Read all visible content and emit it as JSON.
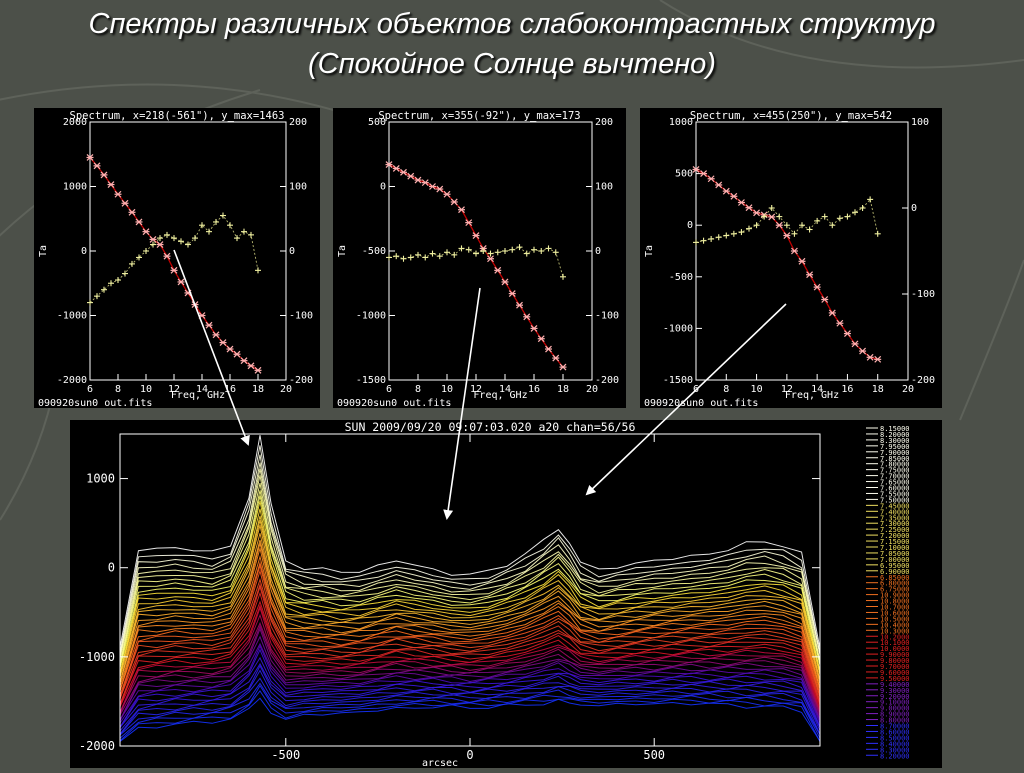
{
  "slide": {
    "title_line1": "Спектры различных объектов слабоконтрастных структур",
    "title_line2": "(Спокойное Солнце вычтено)"
  },
  "colors": {
    "background": "#4c5049",
    "panel": "#000000",
    "spectrum_marker": "#ffb0b0",
    "spectrum_fit": "#c00000",
    "secondary_marker": "#f0f0a0",
    "axis": "#ffffff",
    "arrow": "#ffffff"
  },
  "chart_data": [
    {
      "type": "scatter",
      "id": "spectrum-1",
      "title": "Spectrum, x=218(-561\"), y_max=1463",
      "xlabel": "Freq, GHz",
      "ylabel": "Ta",
      "footer": "090920sun0_out.fits",
      "xlim": [
        6,
        20
      ],
      "ylim": [
        -2000,
        2000
      ],
      "y2lim": [
        -200,
        200
      ],
      "xticks": [
        6,
        8,
        10,
        12,
        14,
        16,
        18,
        20
      ],
      "yticks": [
        -2000,
        -1000,
        0,
        1000,
        2000
      ],
      "y2ticks": [
        -200,
        -100,
        0,
        100,
        200
      ],
      "series": [
        {
          "axis": "left",
          "x": [
            6,
            6.5,
            7,
            7.5,
            8,
            8.5,
            9,
            9.5,
            10,
            10.5,
            11,
            11.5,
            12,
            12.5,
            13,
            13.5,
            14,
            14.5,
            15,
            15.5,
            16,
            16.5,
            17,
            17.5,
            18
          ],
          "y": [
            1450,
            1320,
            1180,
            1030,
            880,
            740,
            600,
            450,
            300,
            180,
            100,
            -80,
            -300,
            -480,
            -650,
            -830,
            -1000,
            -1150,
            -1300,
            -1420,
            -1520,
            -1600,
            -1700,
            -1780,
            -1850
          ]
        },
        {
          "axis": "right",
          "x": [
            6,
            6.5,
            7,
            7.5,
            8,
            8.5,
            9,
            9.5,
            10,
            10.5,
            11,
            11.5,
            12,
            12.5,
            13,
            13.5,
            14,
            14.5,
            15,
            15.5,
            16,
            16.5,
            17,
            17.5,
            18
          ],
          "y": [
            -80,
            -70,
            -60,
            -50,
            -45,
            -35,
            -20,
            -10,
            0,
            10,
            20,
            25,
            20,
            15,
            10,
            20,
            40,
            30,
            45,
            55,
            40,
            20,
            30,
            25,
            -30
          ]
        }
      ]
    },
    {
      "type": "scatter",
      "id": "spectrum-2",
      "title": "Spectrum, x=355(-92\"), y_max=173",
      "xlabel": "Freq, GHz",
      "ylabel": "Ta",
      "footer": "090920sun0_out.fits",
      "xlim": [
        6,
        20
      ],
      "ylim": [
        -1500,
        500
      ],
      "y2lim": [
        -200,
        200
      ],
      "xticks": [
        6,
        8,
        10,
        12,
        14,
        16,
        18,
        20
      ],
      "yticks": [
        -1500,
        -1000,
        -500,
        0,
        500
      ],
      "y2ticks": [
        -200,
        -100,
        0,
        100,
        200
      ],
      "series": [
        {
          "axis": "left",
          "x": [
            6,
            6.5,
            7,
            7.5,
            8,
            8.5,
            9,
            9.5,
            10,
            10.5,
            11,
            11.5,
            12,
            12.5,
            13,
            13.5,
            14,
            14.5,
            15,
            15.5,
            16,
            16.5,
            17,
            17.5,
            18
          ],
          "y": [
            170,
            140,
            110,
            80,
            50,
            30,
            0,
            -20,
            -60,
            -120,
            -180,
            -280,
            -380,
            -480,
            -560,
            -650,
            -740,
            -830,
            -920,
            -1010,
            -1100,
            -1180,
            -1260,
            -1330,
            -1400
          ]
        },
        {
          "axis": "right",
          "x": [
            6,
            6.5,
            7,
            7.5,
            8,
            8.5,
            9,
            9.5,
            10,
            10.5,
            11,
            11.5,
            12,
            12.5,
            13,
            13.5,
            14,
            14.5,
            15,
            15.5,
            16,
            16.5,
            17,
            17.5,
            18
          ],
          "y": [
            -10,
            -8,
            -12,
            -10,
            -6,
            -10,
            -4,
            -8,
            -2,
            -6,
            4,
            2,
            -4,
            0,
            -4,
            -2,
            0,
            2,
            6,
            -4,
            2,
            0,
            4,
            -2,
            -40
          ]
        }
      ]
    },
    {
      "type": "scatter",
      "id": "spectrum-3",
      "title": "Spectrum, x=455(250\"), y_max=542",
      "xlabel": "Freq, GHz",
      "ylabel": "Ta",
      "footer": "090920sun0_out.fits",
      "xlim": [
        6,
        20
      ],
      "ylim": [
        -1500,
        1000
      ],
      "y2lim": [
        -200,
        100
      ],
      "xticks": [
        6,
        8,
        10,
        12,
        14,
        16,
        18,
        20
      ],
      "yticks": [
        -1500,
        -1000,
        -500,
        0,
        500,
        1000
      ],
      "y2ticks": [
        -200,
        -100,
        0,
        100
      ],
      "series": [
        {
          "axis": "left",
          "x": [
            6,
            6.5,
            7,
            7.5,
            8,
            8.5,
            9,
            9.5,
            10,
            10.5,
            11,
            11.5,
            12,
            12.5,
            13,
            13.5,
            14,
            14.5,
            15,
            15.5,
            16,
            16.5,
            17,
            17.5,
            18
          ],
          "y": [
            540,
            500,
            450,
            390,
            330,
            280,
            220,
            170,
            120,
            100,
            80,
            0,
            -100,
            -250,
            -350,
            -480,
            -600,
            -720,
            -850,
            -950,
            -1050,
            -1150,
            -1220,
            -1280,
            -1300
          ]
        },
        {
          "axis": "right",
          "x": [
            6,
            6.5,
            7,
            7.5,
            8,
            8.5,
            9,
            9.5,
            10,
            10.5,
            11,
            11.5,
            12,
            12.5,
            13,
            13.5,
            14,
            14.5,
            15,
            15.5,
            16,
            16.5,
            17,
            17.5,
            18
          ],
          "y": [
            -40,
            -38,
            -36,
            -34,
            -32,
            -30,
            -28,
            -24,
            -20,
            -10,
            0,
            -10,
            -20,
            -30,
            -20,
            -25,
            -15,
            -10,
            -20,
            -12,
            -10,
            -5,
            0,
            10,
            -30
          ]
        }
      ]
    },
    {
      "type": "line",
      "id": "scan-main",
      "title": "SUN 2009/09/20 09:07:03.020 a20 chan=56/56",
      "xlabel": "arcsec",
      "ylabel": "",
      "xlim": [
        -950,
        950
      ],
      "ylim": [
        -2000,
        1500
      ],
      "xticks": [
        -500,
        0,
        500
      ],
      "yticks": [
        -2000,
        -1000,
        0,
        1000
      ],
      "profile": {
        "x": [
          -950,
          -900,
          -850,
          -800,
          -750,
          -700,
          -650,
          -600,
          -570,
          -540,
          -500,
          -450,
          -400,
          -350,
          -300,
          -250,
          -200,
          -150,
          -100,
          -50,
          0,
          50,
          100,
          150,
          200,
          240,
          270,
          300,
          350,
          400,
          450,
          500,
          550,
          600,
          650,
          700,
          750,
          800,
          850,
          900,
          950
        ],
        "top": [
          -900,
          200,
          210,
          230,
          200,
          170,
          250,
          800,
          1480,
          700,
          80,
          0,
          -20,
          -50,
          -40,
          20,
          80,
          30,
          -20,
          -70,
          -80,
          -40,
          40,
          150,
          300,
          450,
          280,
          60,
          -30,
          10,
          50,
          80,
          100,
          130,
          160,
          200,
          270,
          300,
          250,
          150,
          -900
        ],
        "bottom": [
          -1950,
          -1800,
          -1780,
          -1760,
          -1740,
          -1720,
          -1700,
          -1600,
          -1450,
          -1620,
          -1700,
          -1660,
          -1640,
          -1630,
          -1620,
          -1600,
          -1580,
          -1570,
          -1560,
          -1560,
          -1570,
          -1560,
          -1550,
          -1540,
          -1520,
          -1500,
          -1520,
          -1540,
          -1540,
          -1530,
          -1530,
          -1530,
          -1520,
          -1520,
          -1530,
          -1540,
          -1550,
          -1560,
          -1570,
          -1600,
          -1950
        ]
      },
      "legend": {
        "placement": "right",
        "entries": [
          "8.15000",
          "8.20000",
          "8.30000",
          "7.95000",
          "7.90000",
          "7.85000",
          "7.80000",
          "7.75000",
          "7.70000",
          "7.65000",
          "7.60000",
          "7.55000",
          "7.50000",
          "7.45000",
          "7.40000",
          "7.35000",
          "7.30000",
          "7.25000",
          "7.20000",
          "7.15000",
          "7.10000",
          "7.05000",
          "7.00000",
          "6.95000",
          "6.90000",
          "6.85000",
          "6.80000",
          "6.75000",
          "10.9000",
          "10.8000",
          "10.7000",
          "10.6000",
          "10.5000",
          "10.4000",
          "10.3000",
          "10.2000",
          "10.1000",
          "10.0000",
          "9.90000",
          "9.80000",
          "9.70000",
          "9.60000",
          "9.50000",
          "9.40000",
          "9.30000",
          "9.20000",
          "9.10000",
          "9.00000",
          "8.90000",
          "8.80000",
          "8.70000",
          "8.60000",
          "8.50000",
          "8.40000",
          "8.30000",
          "8.20000"
        ]
      }
    }
  ]
}
